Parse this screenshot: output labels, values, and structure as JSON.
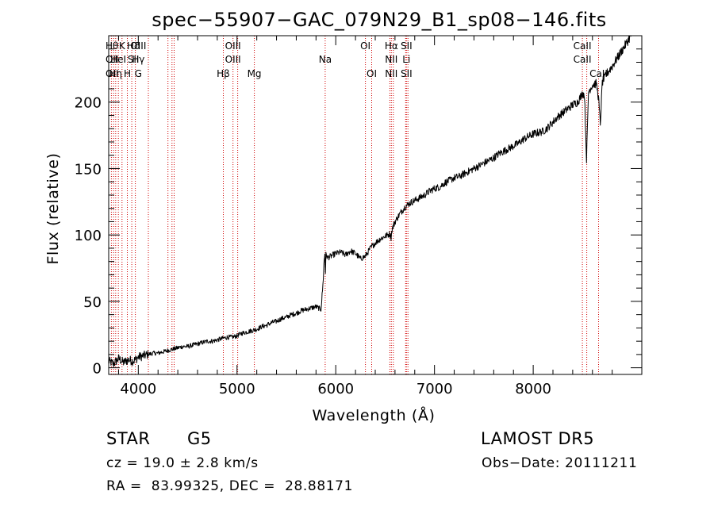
{
  "chart_data": {
    "type": "line",
    "title": "spec−55907−GAC_079N29_B1_sp08−146.fits",
    "xlabel": "Wavelength (Å)",
    "ylabel": "Flux (relative)",
    "xlim": [
      3700,
      9100
    ],
    "ylim": [
      -5,
      250
    ],
    "xticks": [
      4000,
      5000,
      6000,
      7000,
      8000
    ],
    "xtick_labels": [
      "4000",
      "5000",
      "6000",
      "7000",
      "8000"
    ],
    "yticks": [
      0,
      50,
      100,
      150,
      200
    ],
    "ytick_labels": [
      "0",
      "50",
      "100",
      "150",
      "200"
    ],
    "grid": false,
    "series": [
      {
        "x": [
          3700,
          3750,
          3800,
          3850,
          3900,
          3950,
          4000,
          4050,
          4100,
          4150,
          4200,
          4250,
          4300,
          4350,
          4400,
          4450,
          4500,
          4550,
          4600,
          4650,
          4700,
          4750,
          4800,
          4850,
          4900,
          4950,
          5000,
          5050,
          5100,
          5150,
          5200,
          5250,
          5300,
          5350,
          5400,
          5450,
          5500,
          5550,
          5600,
          5650,
          5700,
          5750,
          5800,
          5850,
          5870,
          5880,
          5890,
          5895,
          5900,
          5920,
          5950,
          6000,
          6050,
          6100,
          6150,
          6200,
          6250,
          6300,
          6350,
          6400,
          6450,
          6500,
          6550,
          6560,
          6570,
          6600,
          6650,
          6700,
          6750,
          6800,
          6850,
          6900,
          6950,
          7000,
          7050,
          7100,
          7150,
          7200,
          7250,
          7300,
          7350,
          7400,
          7450,
          7500,
          7550,
          7600,
          7650,
          7700,
          7750,
          7800,
          7850,
          7900,
          7950,
          8000,
          8050,
          8100,
          8150,
          8200,
          8250,
          8300,
          8350,
          8400,
          8450,
          8480,
          8500,
          8520,
          8540,
          8560,
          8600,
          8640,
          8662,
          8680,
          8700,
          8750,
          8800,
          8850,
          8900,
          8950,
          9000,
          9050,
          9090
        ],
        "y": [
          5,
          3,
          7,
          4,
          6,
          5,
          8,
          9,
          10,
          11,
          11,
          12,
          13,
          14,
          15,
          16,
          16,
          17,
          18,
          19,
          20,
          20,
          21,
          22,
          23,
          23,
          24,
          26,
          27,
          28,
          29,
          31,
          32,
          34,
          35,
          37,
          38,
          40,
          41,
          43,
          44,
          45,
          46,
          44,
          62,
          78,
          86,
          72,
          85,
          83,
          84,
          86,
          87,
          85,
          88,
          86,
          82,
          84,
          90,
          94,
          97,
          99,
          101,
          98,
          104,
          110,
          116,
          121,
          124,
          126,
          128,
          130,
          133,
          135,
          136,
          139,
          141,
          143,
          144,
          146,
          148,
          150,
          152,
          154,
          156,
          158,
          161,
          163,
          165,
          167,
          169,
          172,
          174,
          176,
          177,
          178,
          181,
          185,
          189,
          192,
          195,
          198,
          200,
          204,
          207,
          205,
          157,
          208,
          213,
          214,
          203,
          183,
          215,
          222,
          227,
          233,
          239,
          245,
          252,
          260,
          265
        ]
      }
    ],
    "line_labels": [
      {
        "x": 3734,
        "rows": [
          [
            "Hθ",
            0
          ],
          [
            "OII",
            1
          ],
          [
            "OII",
            2
          ]
        ]
      },
      {
        "x": 3770,
        "rows": [
          [
            "Hη",
            2
          ]
        ]
      },
      {
        "x": 3797,
        "rows": [
          [
            "HeI",
            1
          ]
        ]
      },
      {
        "x": 3835,
        "rows": [
          [
            "K",
            0
          ]
        ]
      },
      {
        "x": 3889,
        "rows": [
          [
            "H",
            2
          ]
        ]
      },
      {
        "x": 3950,
        "rows": [
          [
            "Hδ",
            0
          ],
          [
            "SII",
            1
          ]
        ]
      },
      {
        "x": 4000,
        "rows": [
          [
            "OIII",
            0
          ],
          [
            "Hγ",
            1
          ],
          [
            "G",
            2
          ]
        ]
      },
      {
        "x": 4861,
        "rows": [
          [
            "Hβ",
            2
          ]
        ]
      },
      {
        "x": 4959,
        "rows": [
          [
            "OIII",
            0
          ],
          [
            "OIII",
            1
          ]
        ]
      },
      {
        "x": 5175,
        "rows": [
          [
            "Mg",
            2
          ]
        ]
      },
      {
        "x": 5893,
        "rows": [
          [
            "Na",
            1
          ]
        ]
      },
      {
        "x": 6300,
        "rows": [
          [
            "OI",
            0
          ]
        ]
      },
      {
        "x": 6364,
        "rows": [
          [
            "OI",
            2
          ]
        ]
      },
      {
        "x": 6563,
        "rows": [
          [
            "Hα",
            0
          ],
          [
            "NII",
            1
          ],
          [
            "NII",
            2
          ]
        ]
      },
      {
        "x": 6716,
        "rows": [
          [
            "SII",
            0
          ],
          [
            "Li",
            1
          ],
          [
            "SII",
            2
          ]
        ]
      },
      {
        "x": 8498,
        "rows": [
          [
            "CaII",
            0
          ],
          [
            "CaII",
            1
          ]
        ]
      },
      {
        "x": 8662,
        "rows": [
          [
            "CaII",
            2
          ]
        ]
      }
    ],
    "line_marker_x": [
      3727,
      3750,
      3771,
      3798,
      3835,
      3889,
      3934,
      3970,
      4102,
      4300,
      4341,
      4363,
      4861,
      4959,
      5007,
      5175,
      5893,
      6300,
      6364,
      6548,
      6563,
      6583,
      6708,
      6716,
      6731,
      8498,
      8542,
      8662
    ]
  },
  "info": {
    "object": "STAR",
    "subclass": "G5",
    "survey": "LAMOST DR5",
    "cz": "cz = 19.0 ± 2.8 km/s",
    "obs_date": "Obs−Date: 20111211",
    "coords": "RA =  83.99325, DEC =  28.88171"
  }
}
